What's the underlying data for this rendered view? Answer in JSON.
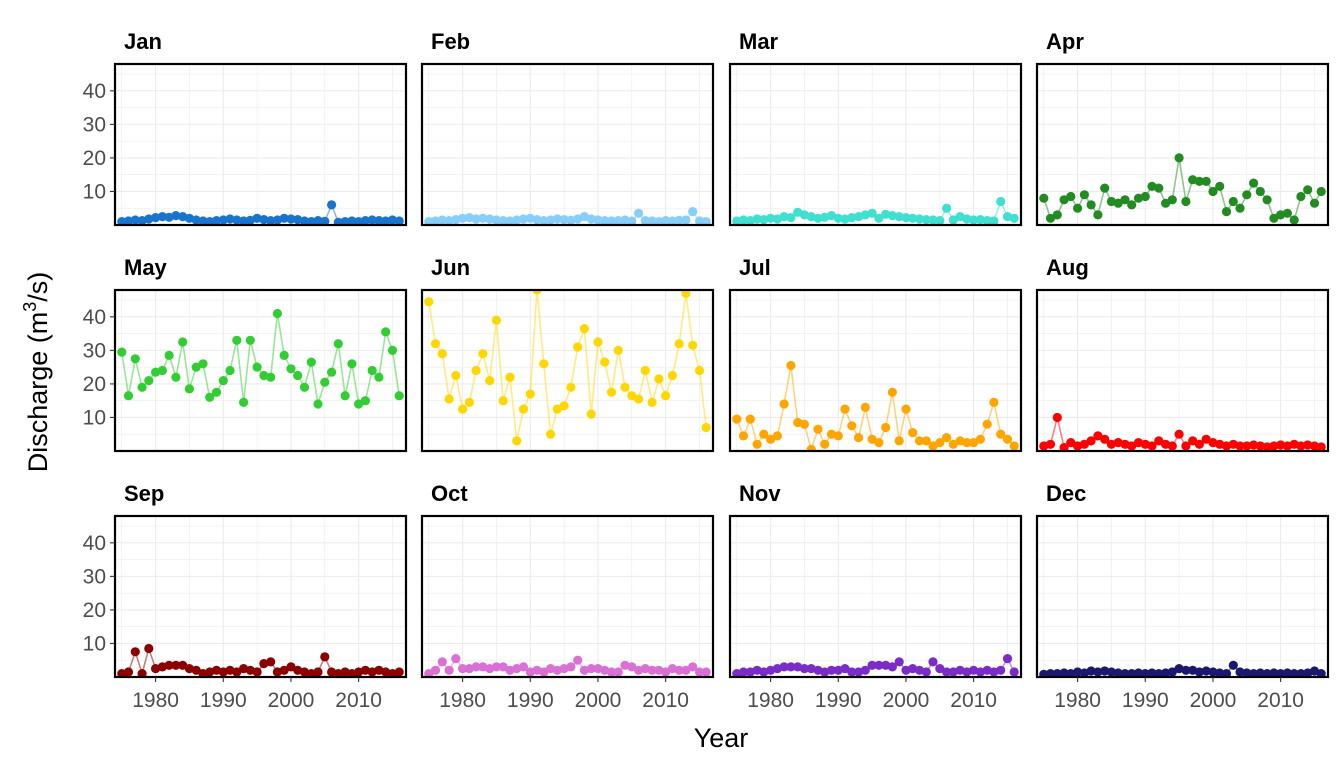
{
  "chart_data": {
    "type": "line",
    "layout": "facet-grid",
    "xlabel": "Year",
    "ylabel": "Discharge (m",
    "ylabel_sup": "3",
    "ylabel_end": "/s)",
    "xlim": [
      1974,
      2017
    ],
    "ylim": [
      0,
      48
    ],
    "x_ticks": [
      1980,
      1990,
      2000,
      2010
    ],
    "x_tick_labels": [
      "1980",
      "1990",
      "2000",
      "2010"
    ],
    "y_ticks": [
      10,
      20,
      30,
      40
    ],
    "y_tick_labels": [
      "10",
      "20",
      "30",
      "40"
    ],
    "grid": true,
    "legend": "none",
    "years": [
      1975,
      1976,
      1977,
      1978,
      1979,
      1980,
      1981,
      1982,
      1983,
      1984,
      1985,
      1986,
      1987,
      1988,
      1989,
      1990,
      1991,
      1992,
      1993,
      1994,
      1995,
      1996,
      1997,
      1998,
      1999,
      2000,
      2001,
      2002,
      2003,
      2004,
      2005,
      2006,
      2007,
      2008,
      2009,
      2010,
      2011,
      2012,
      2013,
      2014,
      2015,
      2016
    ],
    "panels": [
      {
        "title": "Jan",
        "color": "#1874CD",
        "values": [
          1.0,
          1.2,
          1.5,
          1.3,
          1.8,
          2.2,
          2.5,
          2.3,
          2.8,
          2.5,
          2.0,
          1.5,
          1.2,
          1.0,
          1.3,
          1.5,
          1.8,
          1.5,
          1.2,
          1.4,
          2.0,
          1.6,
          1.3,
          1.5,
          2.0,
          1.8,
          1.6,
          1.2,
          1.0,
          1.3,
          1.1,
          6.0,
          0.8,
          1.0,
          1.2,
          1.0,
          1.3,
          1.5,
          1.3,
          1.2,
          1.5,
          1.2
        ]
      },
      {
        "title": "Feb",
        "color": "#87CEFA",
        "values": [
          1.0,
          1.2,
          1.5,
          1.3,
          1.6,
          2.0,
          2.2,
          1.8,
          2.0,
          1.8,
          1.5,
          1.3,
          1.2,
          1.5,
          1.8,
          2.0,
          1.6,
          1.3,
          1.5,
          1.8,
          1.6,
          1.4,
          1.8,
          2.5,
          1.8,
          1.5,
          1.3,
          1.2,
          1.3,
          1.5,
          1.2,
          3.5,
          1.3,
          1.2,
          1.0,
          1.3,
          1.2,
          1.4,
          1.5,
          4.0,
          1.2,
          1.0
        ]
      },
      {
        "title": "Mar",
        "color": "#40E0D0",
        "values": [
          1.2,
          1.5,
          1.3,
          1.8,
          1.6,
          2.0,
          1.8,
          2.5,
          2.2,
          3.8,
          3.0,
          2.5,
          2.0,
          2.3,
          2.8,
          2.0,
          1.8,
          2.2,
          2.5,
          3.0,
          3.5,
          2.0,
          3.2,
          2.8,
          2.5,
          2.2,
          2.0,
          1.8,
          1.6,
          1.5,
          1.3,
          5.0,
          1.5,
          2.5,
          1.8,
          1.5,
          1.6,
          1.3,
          1.2,
          7.0,
          2.5,
          2.0
        ]
      },
      {
        "title": "Apr",
        "color": "#228B22",
        "values": [
          8.0,
          2.0,
          3.0,
          7.5,
          8.5,
          5.0,
          9.0,
          6.0,
          3.0,
          11.0,
          7.0,
          6.5,
          7.5,
          6.0,
          8.0,
          8.5,
          11.5,
          11.0,
          6.5,
          7.5,
          20.0,
          7.0,
          13.5,
          13.0,
          13.0,
          10.0,
          11.5,
          4.0,
          7.0,
          5.0,
          9.0,
          12.5,
          10.0,
          7.5,
          2.0,
          3.0,
          3.5,
          1.5,
          8.5,
          10.5,
          6.5,
          10.0
        ]
      },
      {
        "title": "May",
        "color": "#32CD32",
        "values": [
          29.5,
          16.5,
          27.5,
          19.0,
          21.0,
          23.5,
          24.0,
          28.5,
          22.0,
          32.5,
          18.5,
          25.0,
          26.0,
          16.0,
          17.5,
          21.0,
          24.0,
          33.0,
          14.5,
          33.0,
          25.0,
          22.5,
          22.0,
          41.0,
          28.5,
          24.5,
          22.5,
          19.0,
          26.5,
          14.0,
          20.5,
          23.5,
          32.0,
          16.5,
          26.0,
          14.0,
          15.0,
          24.0,
          22.0,
          35.5,
          30.0,
          16.5
        ]
      },
      {
        "title": "Jun",
        "color": "#FFD700",
        "values": [
          44.5,
          32.0,
          29.0,
          15.5,
          22.5,
          12.5,
          14.5,
          24.0,
          29.0,
          21.0,
          39.0,
          15.0,
          22.0,
          3.0,
          12.5,
          17.0,
          48.0,
          26.0,
          5.0,
          12.5,
          13.5,
          19.0,
          31.0,
          36.5,
          11.0,
          32.5,
          26.5,
          17.5,
          30.0,
          19.0,
          16.5,
          15.5,
          24.0,
          14.5,
          21.5,
          16.5,
          22.5,
          32.0,
          47.0,
          31.5,
          24.0,
          7.0
        ]
      },
      {
        "title": "Jul",
        "color": "#FFA500",
        "values": [
          9.5,
          4.5,
          9.5,
          2.0,
          5.0,
          3.5,
          4.5,
          14.0,
          25.5,
          8.5,
          8.0,
          0.5,
          6.5,
          2.0,
          5.0,
          4.5,
          12.5,
          7.5,
          4.0,
          13.0,
          3.5,
          2.5,
          7.0,
          17.5,
          3.0,
          12.5,
          5.5,
          3.0,
          3.0,
          1.5,
          2.5,
          4.0,
          2.0,
          3.0,
          2.5,
          2.5,
          3.5,
          8.0,
          14.5,
          5.0,
          3.5,
          1.5
        ]
      },
      {
        "title": "Aug",
        "color": "#FF0000",
        "values": [
          1.5,
          2.0,
          10.0,
          1.0,
          2.5,
          1.5,
          2.0,
          3.0,
          4.5,
          3.5,
          2.0,
          2.5,
          2.0,
          1.5,
          2.5,
          2.0,
          1.5,
          3.0,
          2.0,
          1.5,
          5.0,
          1.5,
          3.0,
          2.0,
          3.5,
          2.5,
          2.0,
          1.5,
          2.0,
          1.5,
          1.5,
          1.8,
          1.5,
          1.2,
          1.5,
          1.8,
          1.5,
          2.0,
          1.5,
          1.8,
          1.5,
          1.2
        ]
      },
      {
        "title": "Sep",
        "color": "#8B0000",
        "values": [
          1.0,
          1.5,
          7.5,
          1.0,
          8.5,
          2.5,
          3.0,
          3.5,
          3.5,
          3.5,
          2.5,
          2.0,
          1.0,
          1.5,
          2.0,
          1.5,
          2.0,
          1.5,
          2.5,
          2.0,
          1.5,
          4.0,
          4.5,
          1.5,
          2.0,
          3.0,
          2.0,
          1.5,
          1.0,
          1.5,
          6.0,
          1.5,
          1.0,
          1.5,
          1.0,
          1.5,
          2.0,
          1.5,
          2.0,
          1.5,
          1.0,
          1.5
        ]
      },
      {
        "title": "Oct",
        "color": "#DA70D6",
        "values": [
          1.0,
          2.0,
          4.5,
          2.0,
          5.5,
          2.5,
          2.5,
          3.0,
          3.0,
          2.5,
          3.0,
          3.0,
          2.0,
          2.5,
          3.0,
          1.5,
          2.0,
          1.5,
          2.5,
          2.0,
          2.5,
          3.0,
          5.0,
          2.0,
          2.5,
          2.5,
          2.0,
          1.5,
          1.5,
          3.5,
          3.0,
          2.0,
          2.5,
          2.0,
          2.0,
          1.5,
          2.5,
          2.0,
          2.0,
          3.0,
          1.5,
          1.5
        ]
      },
      {
        "title": "Nov",
        "color": "#7B2BC6",
        "values": [
          1.0,
          1.5,
          1.5,
          2.0,
          1.5,
          2.0,
          2.5,
          3.0,
          3.0,
          3.0,
          2.5,
          2.5,
          2.0,
          1.5,
          2.0,
          2.0,
          2.5,
          1.5,
          1.5,
          2.0,
          3.5,
          3.5,
          3.5,
          3.0,
          4.5,
          2.0,
          2.5,
          2.0,
          1.5,
          4.5,
          2.5,
          1.5,
          1.5,
          2.0,
          1.5,
          2.0,
          1.5,
          2.0,
          1.5,
          2.0,
          5.5,
          1.5
        ]
      },
      {
        "title": "Dec",
        "color": "#191970",
        "values": [
          0.8,
          1.0,
          1.0,
          1.2,
          1.0,
          1.5,
          1.2,
          1.8,
          1.5,
          1.8,
          1.5,
          1.2,
          1.0,
          1.0,
          1.2,
          1.0,
          1.2,
          1.0,
          1.2,
          1.5,
          2.5,
          2.0,
          2.0,
          1.5,
          1.8,
          1.5,
          1.2,
          1.0,
          3.5,
          1.5,
          1.2,
          1.0,
          1.2,
          1.0,
          1.2,
          1.0,
          1.2,
          1.0,
          1.0,
          1.2,
          1.8,
          1.0
        ]
      }
    ]
  }
}
